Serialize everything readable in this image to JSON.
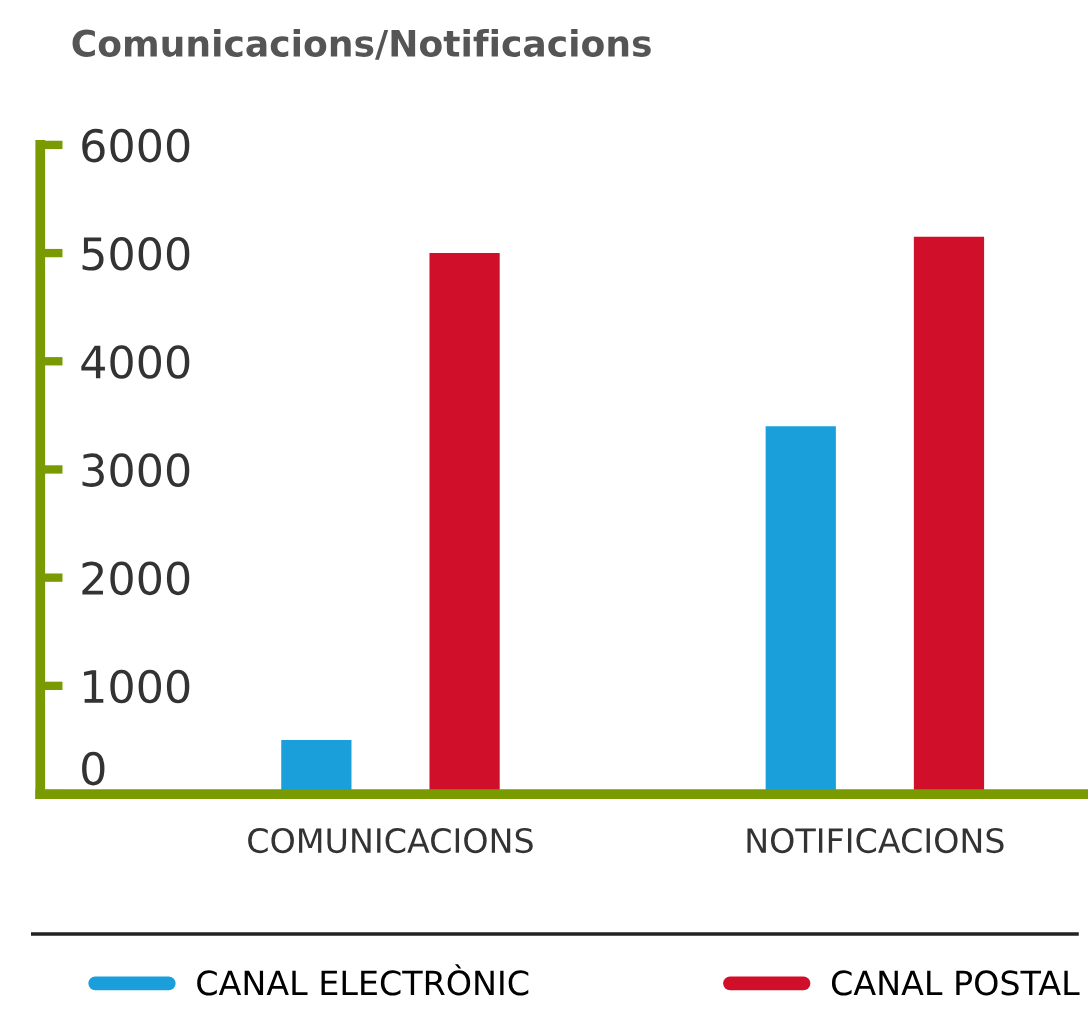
{
  "chart_data": {
    "type": "bar",
    "title": "Comunicacions/Notificacions",
    "categories": [
      "COMUNICACIONS",
      "NOTIFICACIONS"
    ],
    "series": [
      {
        "name": "CANAL ELECTRÒNIC",
        "color": "#1a9fdb",
        "values": [
          500,
          3400
        ]
      },
      {
        "name": "CANAL POSTAL",
        "color": "#d0102a",
        "values": [
          5000,
          5150
        ]
      }
    ],
    "ylim": [
      0,
      6000
    ],
    "yticks": [
      0,
      1000,
      2000,
      3000,
      4000,
      5000,
      6000
    ],
    "grid": false,
    "legend": "bottom"
  }
}
